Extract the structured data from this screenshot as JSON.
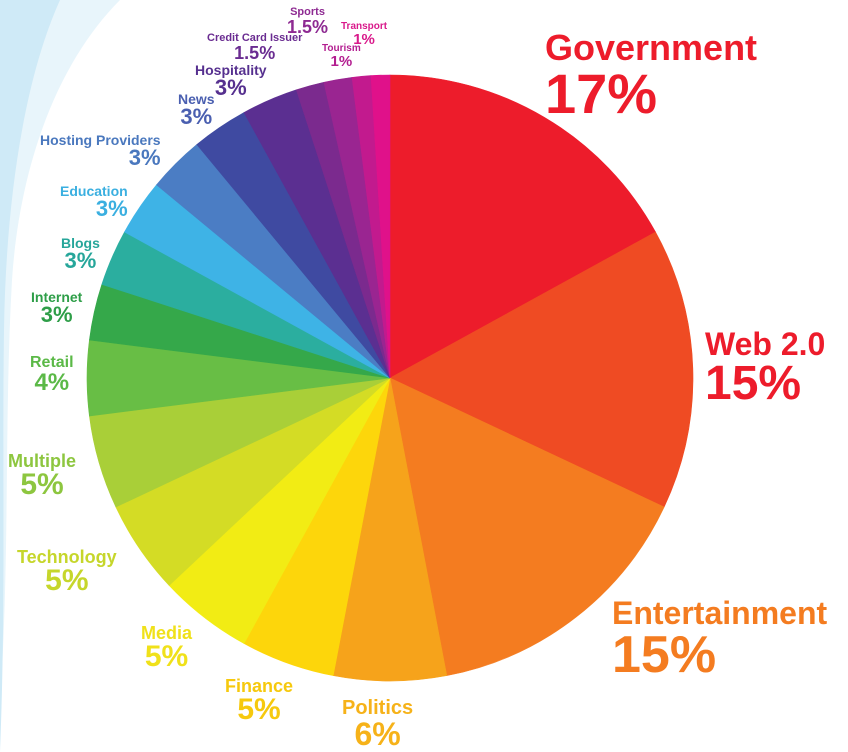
{
  "chart_data": {
    "type": "pie",
    "start": "top",
    "direction": "clockwise",
    "slices": [
      {
        "label": "Government",
        "value": 17,
        "value_label": "17%",
        "color": "#ED1C2B"
      },
      {
        "label": "Web 2.0",
        "value": 15,
        "value_label": "15%",
        "color": "#EF4B23"
      },
      {
        "label": "Entertainment",
        "value": 15,
        "value_label": "15%",
        "color": "#F47C20"
      },
      {
        "label": "Politics",
        "value": 6,
        "value_label": "6%",
        "color": "#F6A31B"
      },
      {
        "label": "Finance",
        "value": 5,
        "value_label": "5%",
        "color": "#FDD60B"
      },
      {
        "label": "Media",
        "value": 5,
        "value_label": "5%",
        "color": "#F2EC14"
      },
      {
        "label": "Technology",
        "value": 5,
        "value_label": "5%",
        "color": "#D4DC25"
      },
      {
        "label": "Multiple",
        "value": 5,
        "value_label": "5%",
        "color": "#A9CF38"
      },
      {
        "label": "Retail",
        "value": 4,
        "value_label": "4%",
        "color": "#68BE45"
      },
      {
        "label": "Internet",
        "value": 3,
        "value_label": "3%",
        "color": "#35A84A"
      },
      {
        "label": "Blogs",
        "value": 3,
        "value_label": "3%",
        "color": "#2BAE9F"
      },
      {
        "label": "Education",
        "value": 3,
        "value_label": "3%",
        "color": "#3EB3E6"
      },
      {
        "label": "Hosting Providers",
        "value": 3,
        "value_label": "3%",
        "color": "#4B7DC4"
      },
      {
        "label": "News",
        "value": 3,
        "value_label": "3%",
        "color": "#3F4AA1"
      },
      {
        "label": "Hospitality",
        "value": 3,
        "value_label": "3%",
        "color": "#5B2F91"
      },
      {
        "label": "Credit Card Issuer",
        "value": 1.5,
        "value_label": "1.5%",
        "color": "#7B2A8E"
      },
      {
        "label": "Sports",
        "value": 1.5,
        "value_label": "1.5%",
        "color": "#9A2591"
      },
      {
        "label": "Tourism",
        "value": 1,
        "value_label": "1%",
        "color": "#C21A8E"
      },
      {
        "label": "Transport",
        "value": 1,
        "value_label": "1%",
        "color": "#E0118A"
      }
    ],
    "label_colors": {
      "Government": "#ED1C2B",
      "Web 2.0": "#ED1C2B",
      "Entertainment": "#F47C20",
      "Politics": "#F6B219",
      "Finance": "#F6C90E",
      "Media": "#F0E11A",
      "Technology": "#C6D62B",
      "Multiple": "#8DC63F",
      "Retail": "#5BB947",
      "Internet": "#2E9E48",
      "Blogs": "#26A69A",
      "Education": "#3AAFE0",
      "Hosting Providers": "#4A78BE",
      "News": "#4A5FB0",
      "Hospitality": "#56308F",
      "Credit Card Issuer": "#6A2C91",
      "Sports": "#8E2A92",
      "Tourism": "#B31E90",
      "Transport": "#D91A8B"
    }
  },
  "background": {
    "swoosh_color": "#CFEAF7"
  }
}
